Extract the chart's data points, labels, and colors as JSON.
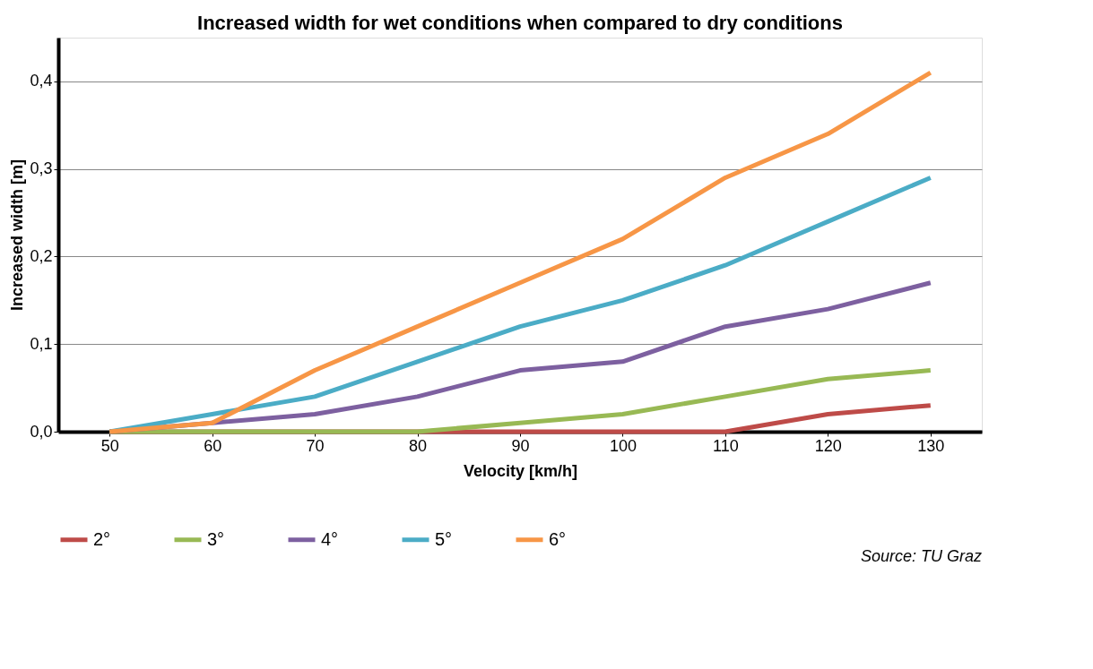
{
  "chart_data": {
    "type": "line",
    "title": "Increased width for wet conditions when compared to dry conditions",
    "xlabel": "Velocity [km/h]",
    "ylabel": "Increased width [m]",
    "categories": [
      "50",
      "60",
      "70",
      "80",
      "90",
      "100",
      "110",
      "120",
      "130"
    ],
    "series": [
      {
        "name": "2°",
        "color": "#be4b48",
        "values": [
          0,
          0,
          0,
          0,
          0,
          0,
          0,
          0.02,
          0.03
        ]
      },
      {
        "name": "3°",
        "color": "#98b954",
        "values": [
          0,
          0,
          0,
          0,
          0.01,
          0.02,
          0.04,
          0.06,
          0.07
        ]
      },
      {
        "name": "4°",
        "color": "#7d60a0",
        "values": [
          0,
          0.01,
          0.02,
          0.04,
          0.07,
          0.08,
          0.12,
          0.14,
          0.17
        ]
      },
      {
        "name": "5°",
        "color": "#4bacc6",
        "values": [
          0,
          0.02,
          0.04,
          0.08,
          0.12,
          0.15,
          0.19,
          0.24,
          0.29
        ]
      },
      {
        "name": "6°",
        "color": "#f79646",
        "values": [
          0,
          0.01,
          0.07,
          0.12,
          0.17,
          0.22,
          0.29,
          0.34,
          0.41
        ]
      }
    ],
    "ylim": [
      0,
      0.45
    ],
    "yticks": [
      {
        "value": 0,
        "label": "0,0"
      },
      {
        "value": 0.1,
        "label": "0,1"
      },
      {
        "value": 0.2,
        "label": "0,2"
      },
      {
        "value": 0.3,
        "label": "0,3"
      },
      {
        "value": 0.4,
        "label": "0,4"
      }
    ],
    "grid": "y",
    "legend": "bottom",
    "marker": "none",
    "line_style": "solid",
    "annotations": [
      "Source: TU Graz"
    ]
  }
}
